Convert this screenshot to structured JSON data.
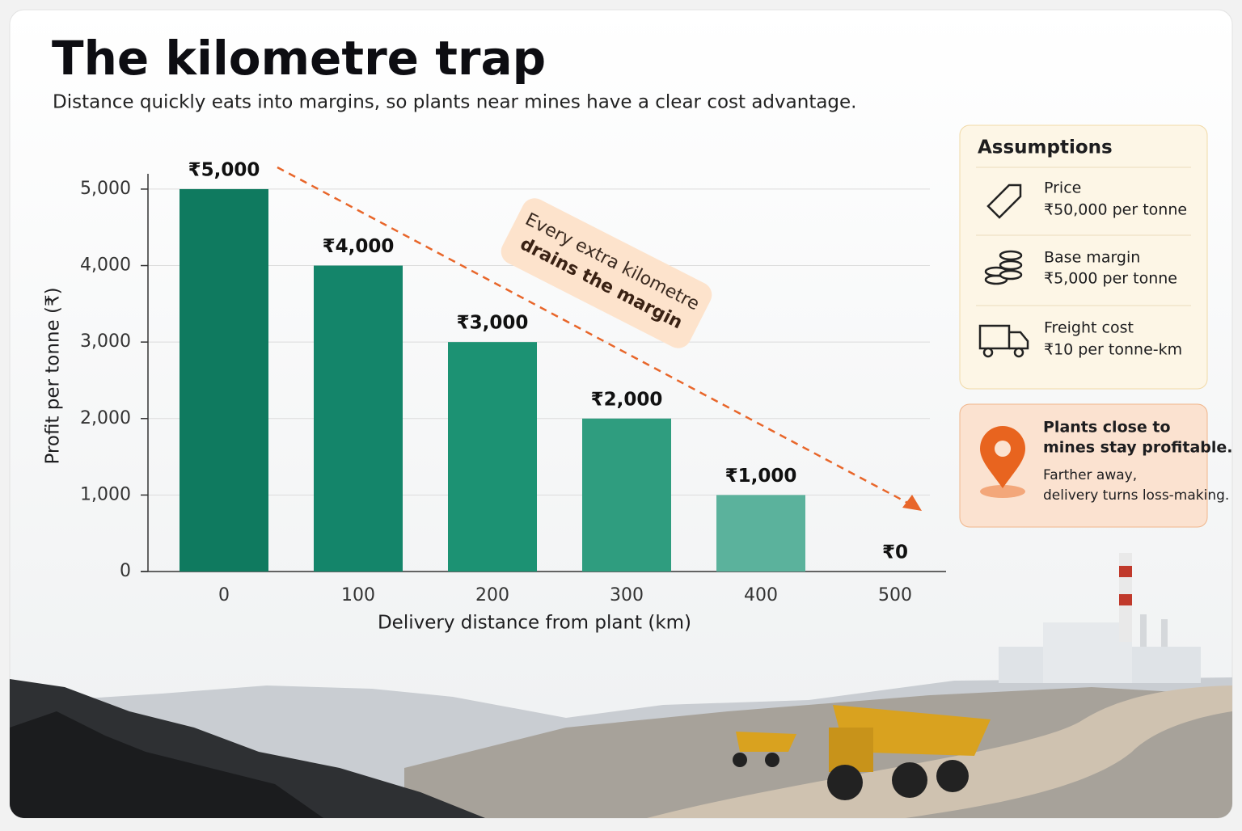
{
  "chart_data": {
    "type": "bar",
    "title": "The kilometre trap",
    "subtitle": "Distance quickly eats into margins, so plants near mines have a clear cost advantage.",
    "x_label": "Delivery distance from plant (km)",
    "y_label": "Profit per tonne (₹)",
    "categories": [
      "0",
      "100",
      "200",
      "300",
      "400",
      "500"
    ],
    "values": [
      5000,
      4000,
      3000,
      2000,
      1000,
      0
    ],
    "value_labels": [
      "₹5,000",
      "₹4,000",
      "₹3,000",
      "₹2,000",
      "₹1,000",
      "₹0"
    ],
    "colors": [
      "#0f7a5f",
      "#14856a",
      "#1c9273",
      "#2f9d7f",
      "#5bb29c",
      "#7cc3ae"
    ],
    "ylim": [
      0,
      5200
    ],
    "yticks": [
      0,
      {
        "value": 1000,
        "label": "1,000"
      },
      {
        "value": 2000,
        "label": "2,000"
      },
      {
        "value": 3000,
        "label": "3,000"
      },
      {
        "value": 4000,
        "label": "4,000"
      },
      {
        "value": 5000,
        "label": "5,000"
      }
    ],
    "grid": true,
    "annotation": [
      "Every extra kilometre",
      "drains the margin"
    ]
  },
  "assumptions": {
    "title": "Assumptions",
    "items": [
      {
        "label": "Price",
        "value": "₹50,000 per tonne"
      },
      {
        "label": "Base margin",
        "value": "₹5,000 per tonne"
      },
      {
        "label": "Freight cost",
        "value": "₹10 per tonne-km"
      }
    ]
  },
  "callout": {
    "headline": [
      "Plants close to",
      "mines stay profitable."
    ],
    "body": [
      "Farther away,",
      "delivery turns loss-making."
    ]
  }
}
